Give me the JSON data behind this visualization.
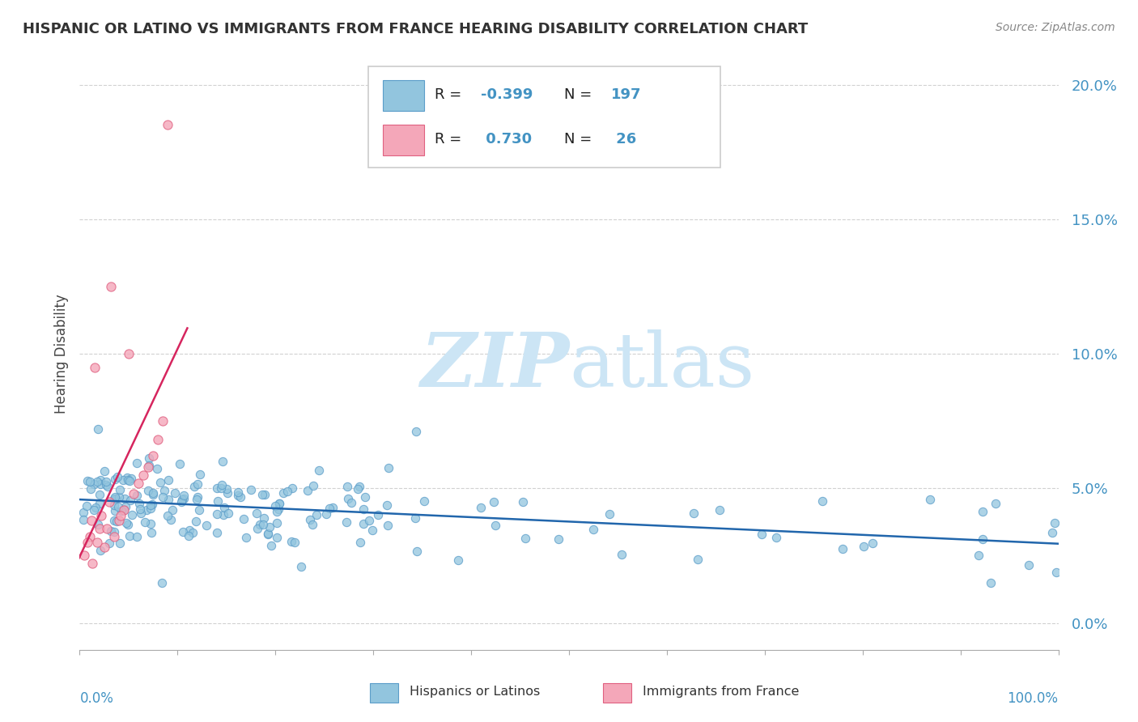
{
  "title": "HISPANIC OR LATINO VS IMMIGRANTS FROM FRANCE HEARING DISABILITY CORRELATION CHART",
  "source": "Source: ZipAtlas.com",
  "ylabel": "Hearing Disability",
  "xlim": [
    0,
    100
  ],
  "ylim": [
    -1,
    21
  ],
  "ytick_vals": [
    0,
    5,
    10,
    15,
    20
  ],
  "ytick_labels": [
    "0.0%",
    "5.0%",
    "10.0%",
    "15.0%",
    "20.0%"
  ],
  "blue_color": "#92c5de",
  "blue_edge_color": "#5b9dc9",
  "pink_color": "#f4a7b9",
  "pink_edge_color": "#e06080",
  "blue_line_color": "#2166ac",
  "pink_line_color": "#d6255e",
  "text_color": "#4393c3",
  "watermark_color": "#cce5f5",
  "background_color": "#ffffff",
  "grid_color": "#cccccc",
  "seed": 99
}
